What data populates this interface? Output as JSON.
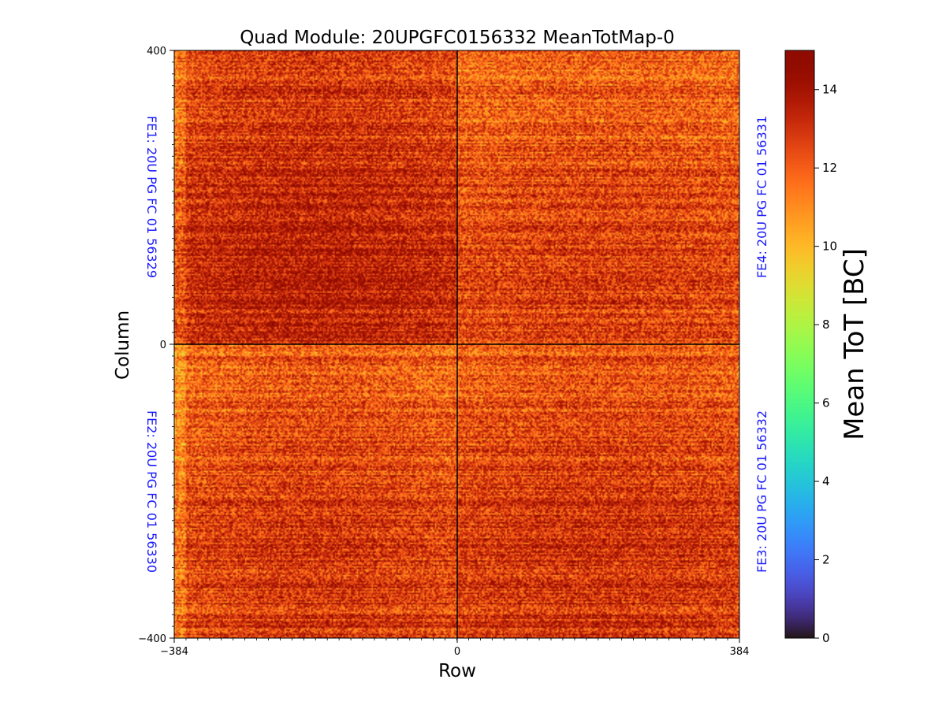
{
  "chart_data": {
    "type": "heatmap",
    "title": "Quad Module: 20UPGFC0156332 MeanTotMap-0",
    "xlabel": "Row",
    "ylabel": "Column",
    "xlim": [
      -384,
      384
    ],
    "ylim": [
      -400,
      400
    ],
    "x_ticks": [
      "−384",
      "0",
      "384"
    ],
    "y_ticks": [
      "400",
      "0",
      "−400"
    ],
    "colorbar": {
      "label": "Mean ToT [BC]",
      "range": [
        0,
        15
      ],
      "ticks": [
        "0",
        "2",
        "4",
        "6",
        "8",
        "10",
        "12",
        "14"
      ],
      "colormap": "turbo"
    },
    "value_range_shown": [
      9,
      15
    ],
    "typical_value": 12.5,
    "front_ends": [
      {
        "label": "FE1: 20U PG FC 01 56329",
        "quadrant": "top-left",
        "mean": 12.8
      },
      {
        "label": "FE4: 20U PG FC 01 56331",
        "quadrant": "top-right",
        "mean": 12.1
      },
      {
        "label": "FE2: 20U PG FC 01 56330",
        "quadrant": "bottom-left",
        "mean": 12.2
      },
      {
        "label": "FE3: 20U PG FC 01 56332",
        "quadrant": "bottom-right",
        "mean": 12.5
      }
    ]
  }
}
